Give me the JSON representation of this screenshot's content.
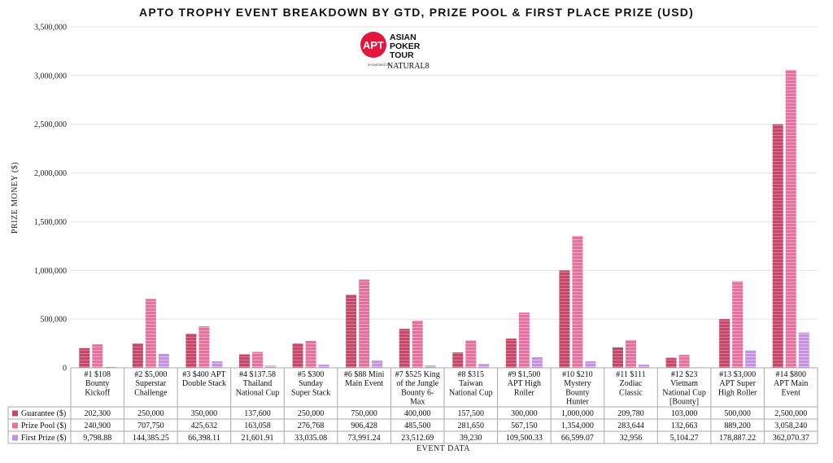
{
  "logo": {
    "badge": "APT",
    "line1": "ASIAN",
    "line2": "POKER",
    "line3": "TOUR",
    "sponsor": "SPONSORED BY",
    "sponsor_brand": "NATURAL8"
  },
  "colors": {
    "guarantee": "#c9466b",
    "prize_pool": "#ee6d9f",
    "first_prize": "#c98ee6",
    "grid": "#e2e2e2",
    "axis": "#999999"
  },
  "chart_data": {
    "type": "bar",
    "title": "APTO TROPHY EVENT BREAKDOWN BY GTD, PRIZE POOL & FIRST PLACE PRIZE (USD)",
    "ylabel": "PRIZE MONEY ($)",
    "xlabel": "EVENT DATA",
    "ylim": [
      0,
      3500000
    ],
    "yticks": [
      {
        "value": 0,
        "label": "0"
      },
      {
        "value": 500000,
        "label": "500,000"
      },
      {
        "value": 1000000,
        "label": "1,000,000"
      },
      {
        "value": 1500000,
        "label": "1,500,000"
      },
      {
        "value": 2000000,
        "label": "2,000,000"
      },
      {
        "value": 2500000,
        "label": "2,500,000"
      },
      {
        "value": 3000000,
        "label": "3,000,000"
      },
      {
        "value": 3500000,
        "label": "3,500,000"
      }
    ],
    "categories": [
      [
        "#1 $108",
        "Bounty",
        "Kickoff"
      ],
      [
        "#2 $5,000",
        "Superstar",
        "Challenge"
      ],
      [
        "#3 $400 APT",
        "Double Stack"
      ],
      [
        "#4 $137.58",
        "Thailand",
        "National Cup"
      ],
      [
        "#5 $300",
        "Sunday",
        "Super Stack"
      ],
      [
        "#6 $88 Mini",
        "Main Event"
      ],
      [
        "#7 $525 King",
        "of the Jungle",
        "Bounty 6-",
        "Max"
      ],
      [
        "#8 $315",
        "Taiwan",
        "National Cup"
      ],
      [
        "#9 $1,500",
        "APT High",
        "Roller"
      ],
      [
        "#10 $210",
        "Mystery",
        "Bounty",
        "Hunter"
      ],
      [
        "#11 $111",
        "Zodiac",
        "Classic"
      ],
      [
        "#12 $23",
        "Vietnam",
        "National Cup",
        "[Bounty]"
      ],
      [
        "#13 $3,000",
        "APT Super",
        "High Roller"
      ],
      [
        "#14 $800",
        "APT Main",
        "Event"
      ]
    ],
    "series": [
      {
        "name": "Guarantee ($)",
        "values": [
          202300,
          250000,
          350000,
          137600,
          250000,
          750000,
          400000,
          157500,
          300000,
          1000000,
          209780,
          103000,
          500000,
          2500000
        ],
        "labels": [
          "202,300",
          "250,000",
          "350,000",
          "137,600",
          "250,000",
          "750,000",
          "400,000",
          "157,500",
          "300,000",
          "1,000,000",
          "209,780",
          "103,000",
          "500,000",
          "2,500,000"
        ]
      },
      {
        "name": "Prize Pool ($)",
        "values": [
          240900,
          707750,
          425632,
          163058,
          276768,
          906428,
          485500,
          281650,
          567150,
          1354000,
          283644,
          132663,
          889200,
          3058240
        ],
        "labels": [
          "240,900",
          "707,750",
          "425,632",
          "163,058",
          "276,768",
          "906,428",
          "485,500",
          "281,650",
          "567,150",
          "1,354,000",
          "283,644",
          "132,663",
          "889,200",
          "3,058,240"
        ]
      },
      {
        "name": "First Prize ($)",
        "values": [
          9798.88,
          144385.25,
          66398.11,
          21601.91,
          33035.08,
          73991.24,
          23512.69,
          39230,
          109500.33,
          66599.07,
          32956,
          5104.27,
          178887.22,
          362070.37
        ],
        "labels": [
          "9,798.88",
          "144,385.25",
          "66,398.11",
          "21,601.91",
          "33,035.08",
          "73,991.24",
          "23,512.69",
          "39,230",
          "109,500.33",
          "66,599.07",
          "32,956",
          "5,104.27",
          "178,887.22",
          "362,070.37"
        ]
      }
    ]
  }
}
